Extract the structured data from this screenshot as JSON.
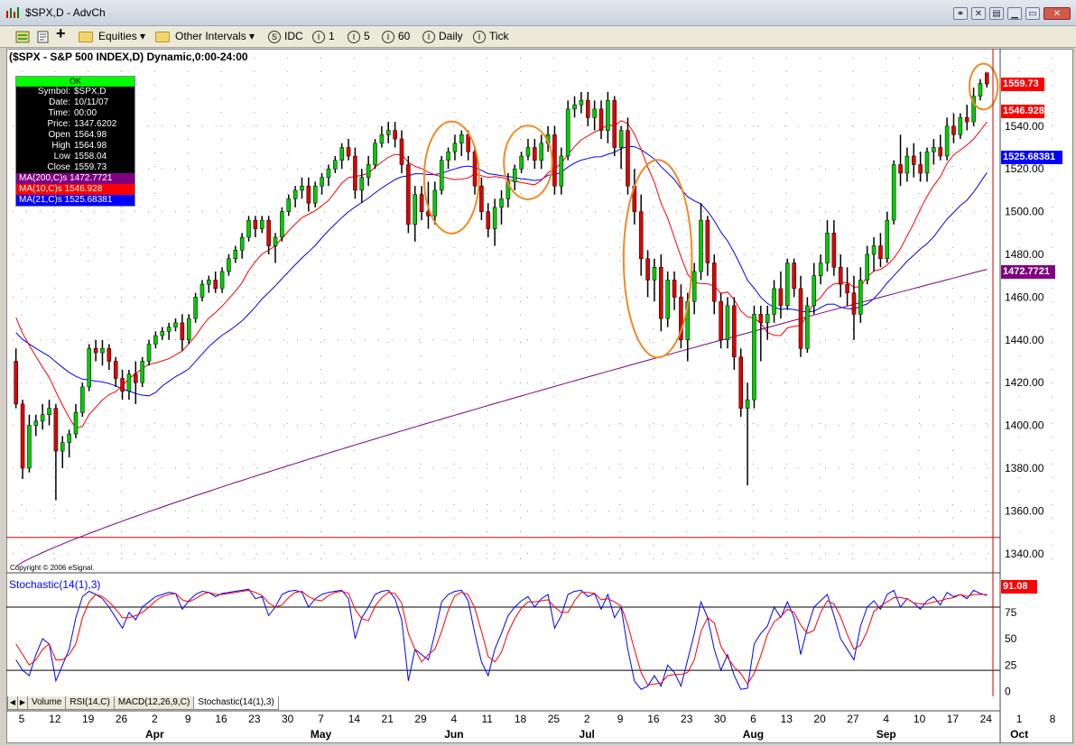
{
  "window": {
    "title": "$SPX,D - AdvCh"
  },
  "toolbar": {
    "items": [
      "Equities",
      "Other Intervals",
      "IDC",
      "1",
      "5",
      "60",
      "Daily",
      "Tick"
    ]
  },
  "chart_header": "($SPX - S&P 500 INDEX,D) Dynamic,0:00-24:00",
  "info": {
    "ok": "OK",
    "rows": [
      {
        "k": "Symbol:",
        "v": "$SPX,D"
      },
      {
        "k": "Date:",
        "v": "10/11/07"
      },
      {
        "k": "Time:",
        "v": "00:00"
      },
      {
        "k": "Price:",
        "v": "1347.6202"
      },
      {
        "k": "Open",
        "v": "1564.98"
      },
      {
        "k": "High",
        "v": "1564.98"
      },
      {
        "k": "Low",
        "v": "1558.04"
      },
      {
        "k": "Close",
        "v": "1559.73"
      }
    ],
    "ma200": "MA(200,C)s 1472.7721",
    "ma10": "MA(10,C)s 1546.928",
    "ma21": "MA(21,C)s 1525.68381"
  },
  "copyright": "Copyright © 2006 eSignal.",
  "osc_label": "Stochastic(14(1),3)",
  "price_tags": {
    "close": "1559.73",
    "ma10": "1546.928",
    "ma21": "1525.68381",
    "ma200": "1472.7721",
    "stoch": "91.08"
  },
  "tabs": [
    "Volume",
    "RSI(14,C)",
    "MACD(12,26,9,C)",
    "Stochastic(14(1),3)"
  ],
  "colors": {
    "up": "#00cc00",
    "down": "#e00000",
    "ma10": "#ff0000",
    "ma21": "#0000ff",
    "ma200": "#800080",
    "circle": "#f08a24"
  },
  "chart_data": {
    "type": "candlestick",
    "price_axis_ticks": [
      1340,
      1360,
      1380,
      1400,
      1420,
      1440,
      1460,
      1480,
      1500,
      1520,
      1540
    ],
    "price_range": [
      1334,
      1572
    ],
    "horizontal_line": 1347.6202,
    "osc_axis_ticks": [
      0,
      25,
      50,
      75
    ],
    "osc_range": [
      -3,
      110
    ],
    "osc_lines": [
      20,
      80
    ],
    "x_tick_labels": [
      "5",
      "12",
      "19",
      "26",
      "2",
      "9",
      "16",
      "23",
      "30",
      "7",
      "14",
      "21",
      "29",
      "4",
      "11",
      "18",
      "25",
      "2",
      "9",
      "16",
      "23",
      "30",
      "6",
      "13",
      "20",
      "27",
      "4",
      "10",
      "17",
      "24",
      "1",
      "8"
    ],
    "month_labels": [
      "Apr",
      "May",
      "Jun",
      "Jul",
      "Aug",
      "Sep",
      "Oct"
    ],
    "month_label_ticks": [
      4,
      9,
      13,
      17,
      22,
      26,
      30
    ],
    "bars_per_week": 5,
    "candles": [
      [
        1430,
        1436,
        1408,
        1410
      ],
      [
        1410,
        1412,
        1375,
        1380
      ],
      [
        1380,
        1405,
        1378,
        1400
      ],
      [
        1400,
        1405,
        1395,
        1402
      ],
      [
        1402,
        1410,
        1398,
        1405
      ],
      [
        1405,
        1412,
        1400,
        1408
      ],
      [
        1408,
        1410,
        1365,
        1388
      ],
      [
        1388,
        1395,
        1380,
        1392
      ],
      [
        1392,
        1398,
        1385,
        1396
      ],
      [
        1396,
        1410,
        1394,
        1406
      ],
      [
        1406,
        1420,
        1404,
        1418
      ],
      [
        1418,
        1438,
        1416,
        1436
      ],
      [
        1436,
        1440,
        1430,
        1434
      ],
      [
        1434,
        1440,
        1428,
        1436
      ],
      [
        1436,
        1438,
        1426,
        1430
      ],
      [
        1430,
        1432,
        1418,
        1422
      ],
      [
        1422,
        1426,
        1412,
        1416
      ],
      [
        1416,
        1426,
        1412,
        1424
      ],
      [
        1424,
        1430,
        1410,
        1420
      ],
      [
        1420,
        1432,
        1418,
        1430
      ],
      [
        1430,
        1440,
        1428,
        1438
      ],
      [
        1438,
        1444,
        1436,
        1442
      ],
      [
        1442,
        1446,
        1440,
        1444
      ],
      [
        1444,
        1448,
        1440,
        1446
      ],
      [
        1446,
        1450,
        1444,
        1448
      ],
      [
        1448,
        1452,
        1435,
        1440
      ],
      [
        1440,
        1452,
        1438,
        1450
      ],
      [
        1450,
        1462,
        1448,
        1460
      ],
      [
        1460,
        1468,
        1458,
        1466
      ],
      [
        1466,
        1470,
        1462,
        1468
      ],
      [
        1468,
        1472,
        1462,
        1464
      ],
      [
        1464,
        1474,
        1462,
        1472
      ],
      [
        1472,
        1480,
        1470,
        1478
      ],
      [
        1478,
        1484,
        1476,
        1482
      ],
      [
        1482,
        1490,
        1478,
        1488
      ],
      [
        1488,
        1498,
        1486,
        1496
      ],
      [
        1496,
        1498,
        1488,
        1492
      ],
      [
        1492,
        1498,
        1490,
        1496
      ],
      [
        1496,
        1498,
        1480,
        1484
      ],
      [
        1484,
        1490,
        1476,
        1488
      ],
      [
        1488,
        1502,
        1486,
        1500
      ],
      [
        1500,
        1508,
        1498,
        1506
      ],
      [
        1506,
        1512,
        1502,
        1510
      ],
      [
        1510,
        1516,
        1506,
        1512
      ],
      [
        1512,
        1516,
        1500,
        1504
      ],
      [
        1504,
        1514,
        1502,
        1512
      ],
      [
        1512,
        1518,
        1508,
        1516
      ],
      [
        1516,
        1522,
        1512,
        1520
      ],
      [
        1520,
        1526,
        1518,
        1524
      ],
      [
        1524,
        1532,
        1520,
        1530
      ],
      [
        1530,
        1534,
        1524,
        1526
      ],
      [
        1526,
        1530,
        1506,
        1510
      ],
      [
        1510,
        1520,
        1504,
        1516
      ],
      [
        1516,
        1526,
        1512,
        1522
      ],
      [
        1522,
        1534,
        1520,
        1532
      ],
      [
        1532,
        1540,
        1530,
        1536
      ],
      [
        1536,
        1542,
        1532,
        1538
      ],
      [
        1538,
        1542,
        1530,
        1534
      ],
      [
        1534,
        1538,
        1518,
        1522
      ],
      [
        1522,
        1526,
        1490,
        1494
      ],
      [
        1494,
        1512,
        1486,
        1508
      ],
      [
        1508,
        1512,
        1496,
        1500
      ],
      [
        1500,
        1514,
        1492,
        1498
      ],
      [
        1498,
        1514,
        1494,
        1510
      ],
      [
        1510,
        1526,
        1508,
        1524
      ],
      [
        1524,
        1530,
        1520,
        1528
      ],
      [
        1528,
        1536,
        1524,
        1532
      ],
      [
        1532,
        1538,
        1526,
        1536
      ],
      [
        1536,
        1538,
        1524,
        1528
      ],
      [
        1528,
        1530,
        1508,
        1512
      ],
      [
        1512,
        1516,
        1496,
        1500
      ],
      [
        1500,
        1504,
        1488,
        1492
      ],
      [
        1492,
        1506,
        1484,
        1502
      ],
      [
        1502,
        1510,
        1494,
        1506
      ],
      [
        1506,
        1518,
        1502,
        1514
      ],
      [
        1514,
        1522,
        1510,
        1520
      ],
      [
        1520,
        1528,
        1518,
        1526
      ],
      [
        1526,
        1534,
        1524,
        1530
      ],
      [
        1530,
        1534,
        1520,
        1524
      ],
      [
        1524,
        1536,
        1520,
        1532
      ],
      [
        1532,
        1540,
        1528,
        1536
      ],
      [
        1536,
        1540,
        1508,
        1512
      ],
      [
        1512,
        1530,
        1508,
        1526
      ],
      [
        1526,
        1552,
        1524,
        1548
      ],
      [
        1548,
        1554,
        1544,
        1550
      ],
      [
        1550,
        1556,
        1546,
        1552
      ],
      [
        1552,
        1556,
        1540,
        1544
      ],
      [
        1544,
        1552,
        1538,
        1548
      ],
      [
        1548,
        1552,
        1534,
        1538
      ],
      [
        1538,
        1556,
        1532,
        1552
      ],
      [
        1552,
        1554,
        1526,
        1530
      ],
      [
        1530,
        1540,
        1520,
        1538
      ],
      [
        1538,
        1544,
        1508,
        1512
      ],
      [
        1512,
        1520,
        1494,
        1500
      ],
      [
        1500,
        1508,
        1470,
        1478
      ],
      [
        1478,
        1482,
        1460,
        1468
      ],
      [
        1468,
        1478,
        1458,
        1474
      ],
      [
        1474,
        1480,
        1444,
        1450
      ],
      [
        1450,
        1472,
        1446,
        1468
      ],
      [
        1468,
        1472,
        1454,
        1460
      ],
      [
        1460,
        1466,
        1436,
        1440
      ],
      [
        1440,
        1462,
        1430,
        1458
      ],
      [
        1458,
        1476,
        1452,
        1472
      ],
      [
        1472,
        1504,
        1468,
        1496
      ],
      [
        1496,
        1498,
        1470,
        1476
      ],
      [
        1476,
        1480,
        1452,
        1458
      ],
      [
        1458,
        1462,
        1436,
        1440
      ],
      [
        1440,
        1460,
        1436,
        1456
      ],
      [
        1456,
        1460,
        1426,
        1432
      ],
      [
        1432,
        1436,
        1404,
        1408
      ],
      [
        1408,
        1420,
        1372,
        1412
      ],
      [
        1412,
        1456,
        1408,
        1452
      ],
      [
        1452,
        1456,
        1430,
        1448
      ],
      [
        1448,
        1456,
        1440,
        1452
      ],
      [
        1452,
        1468,
        1448,
        1464
      ],
      [
        1464,
        1472,
        1450,
        1456
      ],
      [
        1456,
        1478,
        1454,
        1476
      ],
      [
        1476,
        1478,
        1460,
        1464
      ],
      [
        1464,
        1470,
        1432,
        1436
      ],
      [
        1436,
        1460,
        1434,
        1456
      ],
      [
        1456,
        1476,
        1452,
        1470
      ],
      [
        1470,
        1480,
        1466,
        1476
      ],
      [
        1476,
        1496,
        1472,
        1490
      ],
      [
        1490,
        1496,
        1470,
        1474
      ],
      [
        1474,
        1480,
        1460,
        1466
      ],
      [
        1466,
        1474,
        1456,
        1462
      ],
      [
        1462,
        1470,
        1440,
        1452
      ],
      [
        1452,
        1474,
        1448,
        1468
      ],
      [
        1468,
        1484,
        1466,
        1480
      ],
      [
        1480,
        1488,
        1472,
        1484
      ],
      [
        1484,
        1490,
        1474,
        1478
      ],
      [
        1478,
        1500,
        1476,
        1496
      ],
      [
        1496,
        1524,
        1494,
        1522
      ],
      [
        1522,
        1536,
        1512,
        1518
      ],
      [
        1518,
        1530,
        1514,
        1526
      ],
      [
        1526,
        1532,
        1516,
        1522
      ],
      [
        1522,
        1528,
        1514,
        1518
      ],
      [
        1518,
        1530,
        1514,
        1528
      ],
      [
        1528,
        1534,
        1522,
        1530
      ],
      [
        1530,
        1536,
        1524,
        1526
      ],
      [
        1526,
        1544,
        1524,
        1540
      ],
      [
        1540,
        1546,
        1532,
        1536
      ],
      [
        1536,
        1546,
        1534,
        1544
      ],
      [
        1544,
        1550,
        1538,
        1542
      ],
      [
        1542,
        1558,
        1540,
        1554
      ],
      [
        1554,
        1562,
        1552,
        1560
      ],
      [
        1564.98,
        1564.98,
        1558.04,
        1559.73
      ]
    ],
    "stochastic": [
      [
        30,
        45
      ],
      [
        20,
        35
      ],
      [
        15,
        25
      ],
      [
        35,
        30
      ],
      [
        50,
        40
      ],
      [
        45,
        45
      ],
      [
        10,
        30
      ],
      [
        25,
        30
      ],
      [
        40,
        35
      ],
      [
        70,
        45
      ],
      [
        90,
        70
      ],
      [
        95,
        85
      ],
      [
        92,
        92
      ],
      [
        88,
        90
      ],
      [
        80,
        85
      ],
      [
        70,
        78
      ],
      [
        60,
        70
      ],
      [
        75,
        70
      ],
      [
        68,
        72
      ],
      [
        80,
        75
      ],
      [
        85,
        80
      ],
      [
        90,
        86
      ],
      [
        92,
        90
      ],
      [
        94,
        92
      ],
      [
        93,
        93
      ],
      [
        78,
        87
      ],
      [
        86,
        85
      ],
      [
        92,
        88
      ],
      [
        95,
        92
      ],
      [
        94,
        94
      ],
      [
        90,
        92
      ],
      [
        93,
        92
      ],
      [
        94,
        93
      ],
      [
        95,
        94
      ],
      [
        96,
        95
      ],
      [
        97,
        96
      ],
      [
        88,
        94
      ],
      [
        90,
        91
      ],
      [
        72,
        84
      ],
      [
        80,
        80
      ],
      [
        92,
        82
      ],
      [
        95,
        89
      ],
      [
        96,
        94
      ],
      [
        94,
        95
      ],
      [
        80,
        90
      ],
      [
        88,
        87
      ],
      [
        92,
        86
      ],
      [
        94,
        91
      ],
      [
        95,
        94
      ],
      [
        96,
        95
      ],
      [
        88,
        93
      ],
      [
        50,
        78
      ],
      [
        70,
        69
      ],
      [
        80,
        67
      ],
      [
        92,
        81
      ],
      [
        95,
        89
      ],
      [
        96,
        94
      ],
      [
        88,
        93
      ],
      [
        68,
        84
      ],
      [
        10,
        55
      ],
      [
        40,
        40
      ],
      [
        35,
        28
      ],
      [
        30,
        35
      ],
      [
        55,
        40
      ],
      [
        85,
        57
      ],
      [
        92,
        77
      ],
      [
        95,
        91
      ],
      [
        96,
        94
      ],
      [
        86,
        92
      ],
      [
        55,
        79
      ],
      [
        28,
        57
      ],
      [
        15,
        33
      ],
      [
        40,
        28
      ],
      [
        55,
        37
      ],
      [
        72,
        56
      ],
      [
        80,
        69
      ],
      [
        86,
        79
      ],
      [
        90,
        85
      ],
      [
        80,
        85
      ],
      [
        88,
        86
      ],
      [
        92,
        87
      ],
      [
        60,
        80
      ],
      [
        72,
        75
      ],
      [
        92,
        75
      ],
      [
        95,
        86
      ],
      [
        96,
        94
      ],
      [
        90,
        94
      ],
      [
        93,
        93
      ],
      [
        78,
        87
      ],
      [
        92,
        88
      ],
      [
        70,
        85
      ],
      [
        80,
        81
      ],
      [
        40,
        63
      ],
      [
        10,
        40
      ],
      [
        2,
        18
      ],
      [
        5,
        6
      ],
      [
        15,
        7
      ],
      [
        5,
        8
      ],
      [
        25,
        15
      ],
      [
        18,
        16
      ],
      [
        5,
        16
      ],
      [
        30,
        18
      ],
      [
        55,
        30
      ],
      [
        85,
        57
      ],
      [
        70,
        70
      ],
      [
        40,
        65
      ],
      [
        20,
        43
      ],
      [
        35,
        32
      ],
      [
        15,
        23
      ],
      [
        2,
        17
      ],
      [
        3,
        7
      ],
      [
        45,
        17
      ],
      [
        55,
        34
      ],
      [
        62,
        54
      ],
      [
        80,
        66
      ],
      [
        70,
        71
      ],
      [
        85,
        78
      ],
      [
        70,
        75
      ],
      [
        35,
        63
      ],
      [
        60,
        55
      ],
      [
        80,
        58
      ],
      [
        86,
        75
      ],
      [
        92,
        86
      ],
      [
        72,
        83
      ],
      [
        50,
        71
      ],
      [
        40,
        54
      ],
      [
        30,
        40
      ],
      [
        62,
        44
      ],
      [
        80,
        57
      ],
      [
        86,
        76
      ],
      [
        78,
        81
      ],
      [
        92,
        85
      ],
      [
        96,
        89
      ],
      [
        80,
        89
      ],
      [
        88,
        88
      ],
      [
        84,
        84
      ],
      [
        78,
        83
      ],
      [
        86,
        83
      ],
      [
        90,
        85
      ],
      [
        82,
        86
      ],
      [
        94,
        88
      ],
      [
        90,
        89
      ],
      [
        92,
        92
      ],
      [
        88,
        90
      ],
      [
        96,
        92
      ],
      [
        93,
        92
      ],
      [
        91.08,
        92
      ]
    ],
    "ma10": [],
    "ma21": [],
    "ma200": [
      1334,
      1473
    ],
    "series": [
      {
        "name": "MA(200,C)s",
        "values": [
          1472.7721
        ]
      },
      {
        "name": "MA(10,C)s",
        "values": [
          1546.928
        ]
      },
      {
        "name": "MA(21,C)s",
        "values": [
          1525.68381
        ]
      }
    ],
    "annotation_circles_bar_index": [
      [
        63,
        68
      ],
      [
        75,
        79
      ],
      [
        93,
        100
      ],
      [
        145,
        151
      ]
    ]
  }
}
